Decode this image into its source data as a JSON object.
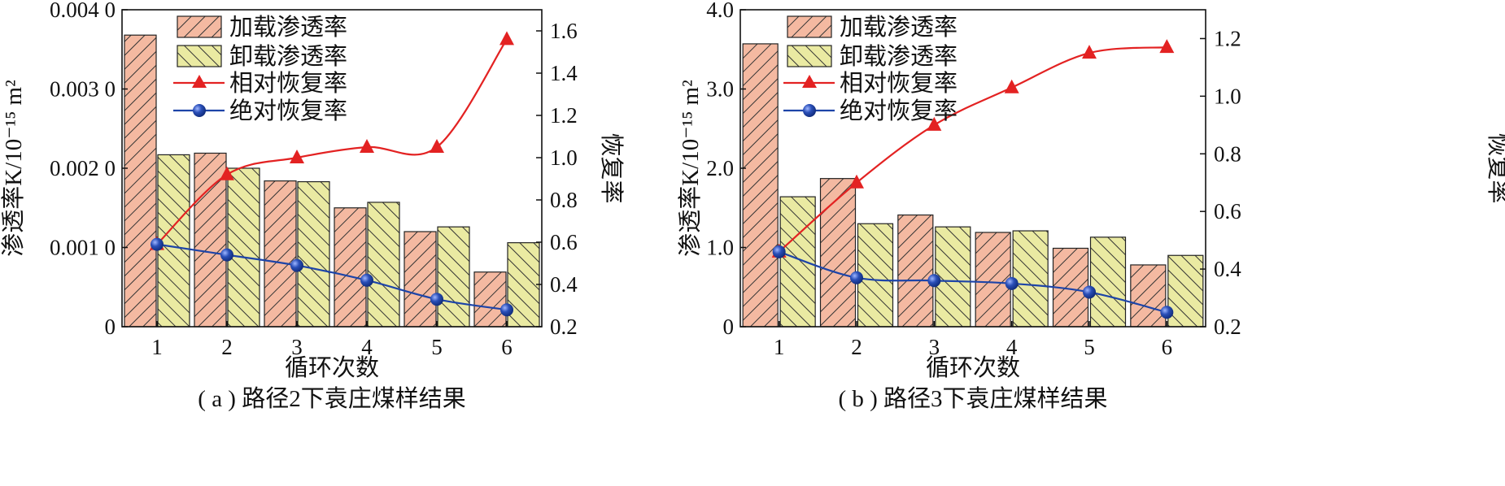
{
  "colors": {
    "loading_bar_fill": "#f4b9a1",
    "unloading_bar_fill": "#eaeaa2",
    "hatch": "#333333",
    "relative_line": "#e32222",
    "absolute_line": "#1d44a8",
    "absolute_marker": "#2a4fb8"
  },
  "legend": {
    "loading": "加载渗透率",
    "unloading": "卸载渗透率",
    "relative": "相对恢复率",
    "absolute": "绝对恢复率"
  },
  "chart_data": [
    {
      "type": "bar",
      "caption": "( a ) 路径2下袁庄煤样结果",
      "xlabel": "循环次数",
      "ylabel_left": "渗透率K/10⁻¹⁵ m²",
      "ylabel_right": "恢复率",
      "categories": [
        "1",
        "2",
        "3",
        "4",
        "5",
        "6"
      ],
      "ylim_left": [
        0,
        0.004
      ],
      "yticks_left": [
        "0",
        "0.001 0",
        "0.002 0",
        "0.003 0",
        "0.004 0"
      ],
      "ylim_right": [
        0.2,
        1.7
      ],
      "yticks_right": [
        "0.2",
        "0.4",
        "0.6",
        "0.8",
        "1.0",
        "1.2",
        "1.4",
        "1.6"
      ],
      "bar_series": [
        {
          "name": "加载渗透率",
          "values": [
            0.00368,
            0.00219,
            0.00184,
            0.0015,
            0.0012,
            0.00069
          ]
        },
        {
          "name": "卸载渗透率",
          "values": [
            0.00217,
            0.002,
            0.00183,
            0.00157,
            0.00126,
            0.00106
          ]
        }
      ],
      "line_series": [
        {
          "name": "相对恢复率",
          "axis": "right",
          "values": [
            0.59,
            0.92,
            1.0,
            1.05,
            1.05,
            1.56
          ]
        },
        {
          "name": "绝对恢复率",
          "axis": "right",
          "values": [
            0.59,
            0.54,
            0.49,
            0.42,
            0.33,
            0.28
          ]
        }
      ],
      "legend_position": "top-left",
      "grid": false
    },
    {
      "type": "bar",
      "caption": "( b ) 路径3下袁庄煤样结果",
      "xlabel": "循环次数",
      "ylabel_left": "渗透率K/10⁻¹⁵ m²",
      "ylabel_right": "恢复率",
      "categories": [
        "1",
        "2",
        "3",
        "4",
        "5",
        "6"
      ],
      "ylim_left": [
        0,
        4.0
      ],
      "yticks_left": [
        "0",
        "1.0",
        "2.0",
        "3.0",
        "4.0"
      ],
      "ylim_right": [
        0.2,
        1.3
      ],
      "yticks_right": [
        "0.2",
        "0.4",
        "0.6",
        "0.8",
        "1.0",
        "1.2"
      ],
      "bar_series": [
        {
          "name": "加载渗透率",
          "values": [
            3.57,
            1.87,
            1.41,
            1.19,
            0.99,
            0.78
          ]
        },
        {
          "name": "卸载渗透率",
          "values": [
            1.64,
            1.3,
            1.26,
            1.21,
            1.13,
            0.9
          ]
        }
      ],
      "line_series": [
        {
          "name": "相对恢复率",
          "axis": "right",
          "values": [
            0.46,
            0.7,
            0.9,
            1.03,
            1.15,
            1.17
          ]
        },
        {
          "name": "绝对恢复率",
          "axis": "right",
          "values": [
            0.46,
            0.37,
            0.36,
            0.35,
            0.32,
            0.25
          ]
        }
      ],
      "legend_position": "top-left",
      "grid": false
    }
  ]
}
